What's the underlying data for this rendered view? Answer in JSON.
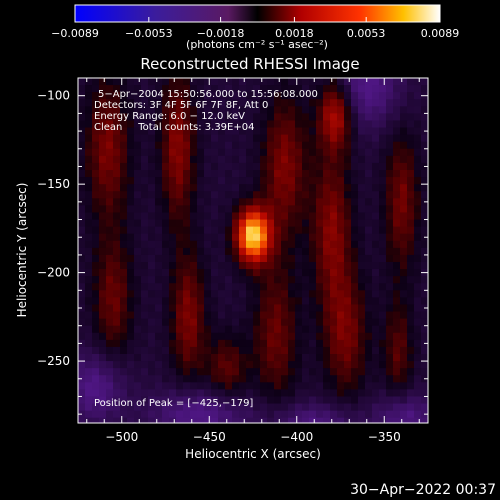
{
  "chart_data": {
    "type": "heatmap",
    "title": "Reconstructed RHESSI Image",
    "xlabel": "Heliocentric X (arcsec)",
    "ylabel": "Heliocentric Y (arcsec)",
    "xlim": [
      -525,
      -325
    ],
    "ylim": [
      -285,
      -90
    ],
    "x_ticks": [
      -500,
      -450,
      -400,
      -350
    ],
    "y_ticks": [
      -100,
      -150,
      -200,
      -250
    ],
    "x_tick_labels": [
      "−500",
      "−450",
      "−400",
      "−350"
    ],
    "y_tick_labels": [
      "−100",
      "−150",
      "−200",
      "−250"
    ],
    "colorbar": {
      "range": [
        -0.0089,
        0.0089
      ],
      "ticks": [
        -0.0089,
        -0.0053,
        -0.0018,
        0.0018,
        0.0053,
        0.0089
      ],
      "tick_labels": [
        "−0.0089",
        "−0.0053",
        "−0.0018",
        "0.0018",
        "0.0053",
        "0.0089"
      ],
      "unit_label": "(photons cm⁻² s⁻¹ asec⁻²)"
    },
    "annotations": [
      "5−Apr−2004 15:50:56.000 to 15:56:08.000",
      "Detectors: 3F 4F 5F 6F 7F 8F, Att 0",
      "Energy Range: 6.0 − 12.0 keV",
      "Clean     Total counts: 3.39E+04"
    ],
    "peak_text": "Position of Peak = [−425,−179]",
    "peak": {
      "x": -425,
      "y": -179
    },
    "sources": [
      {
        "x": -425,
        "y": -179,
        "sx": 7,
        "sy": 11,
        "amp": 0.0089
      },
      {
        "x": -508,
        "y": -130,
        "sx": 9,
        "sy": 28,
        "amp": 0.0032
      },
      {
        "x": -505,
        "y": -215,
        "sx": 8,
        "sy": 25,
        "amp": 0.0028
      },
      {
        "x": -468,
        "y": -130,
        "sx": 7,
        "sy": 30,
        "amp": 0.0035
      },
      {
        "x": -462,
        "y": -225,
        "sx": 7,
        "sy": 25,
        "amp": 0.0033
      },
      {
        "x": -440,
        "y": -255,
        "sx": 8,
        "sy": 14,
        "amp": 0.0026
      },
      {
        "x": -407,
        "y": -140,
        "sx": 9,
        "sy": 28,
        "amp": 0.0033
      },
      {
        "x": -412,
        "y": -235,
        "sx": 9,
        "sy": 28,
        "amp": 0.0028
      },
      {
        "x": -378,
        "y": -110,
        "sx": 7,
        "sy": 14,
        "amp": 0.0046
      },
      {
        "x": -380,
        "y": -175,
        "sx": 8,
        "sy": 30,
        "amp": 0.0034
      },
      {
        "x": -372,
        "y": -235,
        "sx": 9,
        "sy": 25,
        "amp": 0.003
      },
      {
        "x": -340,
        "y": -160,
        "sx": 7,
        "sy": 28,
        "amp": 0.003
      },
      {
        "x": -342,
        "y": -245,
        "sx": 6,
        "sy": 20,
        "amp": 0.0024
      },
      {
        "x": -515,
        "y": -265,
        "sx": 12,
        "sy": 14,
        "amp": -0.003
      },
      {
        "x": -455,
        "y": -280,
        "sx": 20,
        "sy": 10,
        "amp": -0.0032
      },
      {
        "x": -360,
        "y": -95,
        "sx": 14,
        "sy": 16,
        "amp": -0.003
      },
      {
        "x": -338,
        "y": -282,
        "sx": 12,
        "sy": 10,
        "amp": -0.0028
      },
      {
        "x": -390,
        "y": -285,
        "sx": 18,
        "sy": 8,
        "amp": -0.0026
      }
    ],
    "grid": false
  },
  "timestamp": "30−Apr−2022 00:37"
}
